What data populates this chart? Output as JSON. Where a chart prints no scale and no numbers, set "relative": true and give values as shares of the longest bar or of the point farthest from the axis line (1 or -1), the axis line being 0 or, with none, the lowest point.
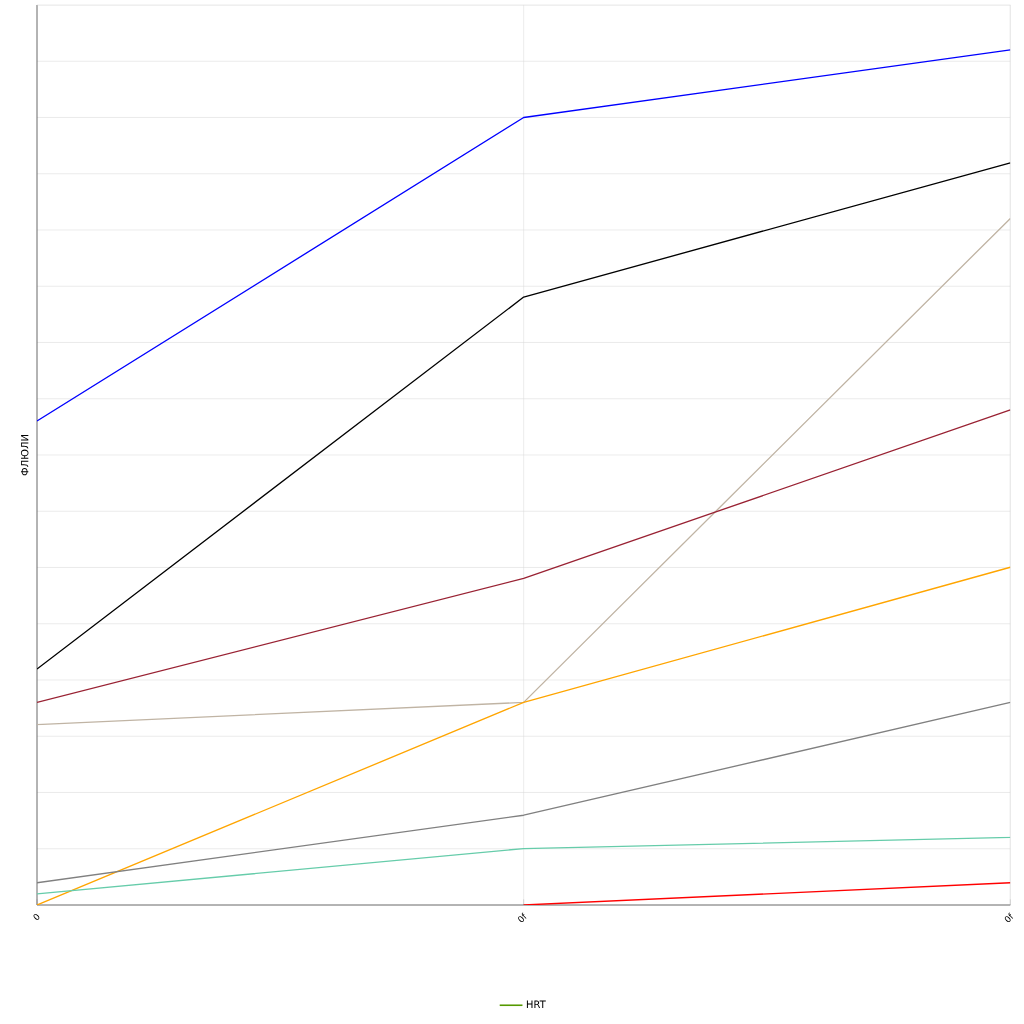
{
  "chart_data": {
    "type": "line",
    "ylabel": "ФЛЮЛИ",
    "relative": true,
    "categories": [
      "0",
      "0f",
      "0f"
    ],
    "series": [
      {
        "color": "#0000ff",
        "values": [
          0.566,
          0.921,
          1
        ]
      },
      {
        "color": "#000000",
        "values": [
          0.276,
          0.711,
          0.868
        ]
      },
      {
        "color": "#c0b4a4",
        "values": [
          0.211,
          0.237,
          0.803
        ]
      },
      {
        "color": "#992233",
        "values": [
          0.237,
          0.382,
          0.579
        ]
      },
      {
        "color": "#ffa500",
        "values": [
          0,
          0.237,
          0.395
        ]
      },
      {
        "color": "#808080",
        "values": [
          0.026,
          0.105,
          0.237
        ]
      },
      {
        "color": "#66ccaa",
        "values": [
          0.013,
          0.066,
          0.079
        ]
      },
      {
        "color": "#ff0000",
        "values": [
          null,
          0,
          0.026
        ]
      },
      {
        "name": "HRT",
        "color": "#559900",
        "values": [
          null,
          null,
          null
        ]
      }
    ],
    "grid": true,
    "legend": "bottom",
    "marker": "none",
    "line_style": "solid"
  }
}
